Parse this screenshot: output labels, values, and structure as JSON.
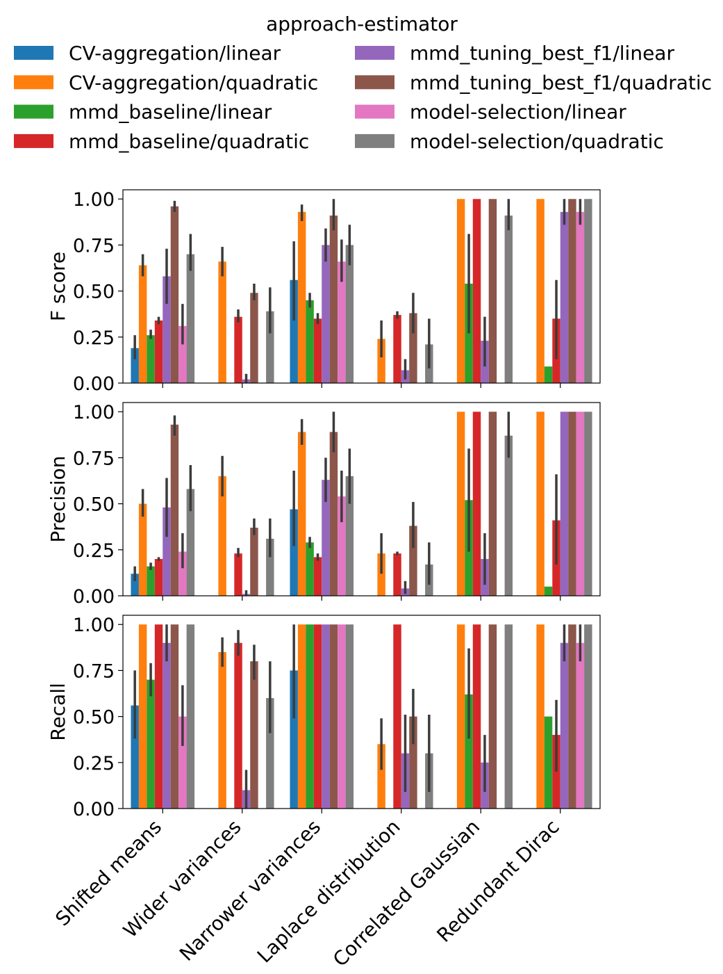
{
  "chart_data": {
    "type": "bar",
    "legend_title": "approach-estimator",
    "legend_position": "top",
    "categories": [
      "Shifted means",
      "Wider variances",
      "Narrower variances",
      "Laplace distribution",
      "Correlated Gaussian",
      "Redundant Dirac"
    ],
    "series_names": [
      "CV-aggregation/linear",
      "CV-aggregation/quadratic",
      "mmd_baseline/linear",
      "mmd_baseline/quadratic",
      "mmd_tuning_best_f1/linear",
      "mmd_tuning_best_f1/quadratic",
      "model-selection/linear",
      "model-selection/quadratic"
    ],
    "colors": [
      "#1f77b4",
      "#ff7f0e",
      "#2ca02c",
      "#d62728",
      "#9467bd",
      "#8c564b",
      "#e377c2",
      "#7f7f7f"
    ],
    "error_bar_color": "#3b3b3b",
    "ylim": [
      0,
      1.05
    ],
    "yticks": [
      "0.00",
      "0.25",
      "0.50",
      "0.75",
      "1.00"
    ],
    "panels": [
      {
        "ylabel": "F score",
        "series": [
          {
            "name": "CV-aggregation/linear",
            "values": [
              0.19,
              0,
              0.56,
              0,
              0,
              0
            ],
            "err": [
              [
                0.13,
                0.26
              ],
              null,
              [
                0.34,
                0.77
              ],
              null,
              null,
              null
            ]
          },
          {
            "name": "CV-aggregation/quadratic",
            "values": [
              0.64,
              0.66,
              0.93,
              0.24,
              1.0,
              1.0
            ],
            "err": [
              [
                0.58,
                0.7
              ],
              [
                0.58,
                0.74
              ],
              [
                0.88,
                0.97
              ],
              [
                0.14,
                0.34
              ],
              null,
              null
            ]
          },
          {
            "name": "mmd_baseline/linear",
            "values": [
              0.26,
              0,
              0.45,
              0,
              0.54,
              0.09
            ],
            "err": [
              [
                0.24,
                0.29
              ],
              null,
              [
                0.41,
                0.49
              ],
              null,
              [
                0.27,
                0.81
              ],
              null
            ]
          },
          {
            "name": "mmd_baseline/quadratic",
            "values": [
              0.34,
              0.36,
              0.35,
              0.37,
              1.0,
              0.35
            ],
            "err": [
              [
                0.32,
                0.36
              ],
              [
                0.33,
                0.4
              ],
              [
                0.32,
                0.38
              ],
              [
                0.35,
                0.39
              ],
              null,
              [
                0.13,
                0.56
              ]
            ]
          },
          {
            "name": "mmd_tuning_best_f1/linear",
            "values": [
              0.58,
              0.02,
              0.75,
              0.07,
              0.23,
              0.93
            ],
            "err": [
              [
                0.43,
                0.73
              ],
              [
                0.0,
                0.05
              ],
              [
                0.66,
                0.84
              ],
              [
                0.02,
                0.13
              ],
              [
                0.09,
                0.36
              ],
              [
                0.86,
                1.0
              ]
            ]
          },
          {
            "name": "mmd_tuning_best_f1/quadratic",
            "values": [
              0.96,
              0.49,
              0.91,
              0.38,
              1.0,
              1.0
            ],
            "err": [
              [
                0.93,
                0.99
              ],
              [
                0.45,
                0.54
              ],
              [
                0.83,
                1.0
              ],
              [
                0.27,
                0.49
              ],
              null,
              null
            ]
          },
          {
            "name": "model-selection/linear",
            "values": [
              0.31,
              0,
              0.66,
              0,
              0,
              0.93
            ],
            "err": [
              [
                0.21,
                0.43
              ],
              null,
              [
                0.55,
                0.78
              ],
              null,
              null,
              [
                0.86,
                1.0
              ]
            ]
          },
          {
            "name": "model-selection/quadratic",
            "values": [
              0.7,
              0.39,
              0.75,
              0.21,
              0.91,
              1.0
            ],
            "err": [
              [
                0.61,
                0.81
              ],
              [
                0.27,
                0.52
              ],
              [
                0.64,
                0.86
              ],
              [
                0.08,
                0.35
              ],
              [
                0.83,
                1.0
              ],
              null
            ]
          }
        ]
      },
      {
        "ylabel": "Precision",
        "series": [
          {
            "name": "CV-aggregation/linear",
            "values": [
              0.12,
              0,
              0.47,
              0,
              0,
              0
            ],
            "err": [
              [
                0.08,
                0.16
              ],
              null,
              [
                0.27,
                0.68
              ],
              null,
              null,
              null
            ]
          },
          {
            "name": "CV-aggregation/quadratic",
            "values": [
              0.5,
              0.65,
              0.89,
              0.23,
              1.0,
              1.0
            ],
            "err": [
              [
                0.43,
                0.58
              ],
              [
                0.54,
                0.76
              ],
              [
                0.82,
                0.96
              ],
              [
                0.12,
                0.34
              ],
              null,
              null
            ]
          },
          {
            "name": "mmd_baseline/linear",
            "values": [
              0.16,
              0,
              0.29,
              0,
              0.52,
              0.05
            ],
            "err": [
              [
                0.14,
                0.18
              ],
              null,
              [
                0.26,
                0.32
              ],
              null,
              [
                0.24,
                0.8
              ],
              null
            ]
          },
          {
            "name": "mmd_baseline/quadratic",
            "values": [
              0.2,
              0.23,
              0.21,
              0.23,
              1.0,
              0.41
            ],
            "err": [
              [
                0.19,
                0.21
              ],
              [
                0.21,
                0.26
              ],
              [
                0.19,
                0.23
              ],
              [
                0.22,
                0.24
              ],
              null,
              [
                0.17,
                0.66
              ]
            ]
          },
          {
            "name": "mmd_tuning_best_f1/linear",
            "values": [
              0.48,
              0.01,
              0.63,
              0.04,
              0.2,
              1.0
            ],
            "err": [
              [
                0.32,
                0.64
              ],
              [
                0.0,
                0.03
              ],
              [
                0.51,
                0.75
              ],
              [
                0.01,
                0.08
              ],
              [
                0.06,
                0.34
              ],
              null
            ]
          },
          {
            "name": "mmd_tuning_best_f1/quadratic",
            "values": [
              0.93,
              0.37,
              0.89,
              0.38,
              1.0,
              1.0
            ],
            "err": [
              [
                0.87,
                0.98
              ],
              [
                0.33,
                0.42
              ],
              [
                0.78,
                1.0
              ],
              [
                0.26,
                0.51
              ],
              null,
              null
            ]
          },
          {
            "name": "model-selection/linear",
            "values": [
              0.24,
              0,
              0.54,
              0,
              0,
              1.0
            ],
            "err": [
              [
                0.15,
                0.34
              ],
              null,
              [
                0.4,
                0.68
              ],
              null,
              null,
              null
            ]
          },
          {
            "name": "model-selection/quadratic",
            "values": [
              0.58,
              0.31,
              0.65,
              0.17,
              0.87,
              1.0
            ],
            "err": [
              [
                0.46,
                0.71
              ],
              [
                0.21,
                0.42
              ],
              [
                0.5,
                0.8
              ],
              [
                0.06,
                0.29
              ],
              [
                0.75,
                1.0
              ],
              null
            ]
          }
        ]
      },
      {
        "ylabel": "Recall",
        "series": [
          {
            "name": "CV-aggregation/linear",
            "values": [
              0.56,
              0,
              0.75,
              0,
              0,
              0
            ],
            "err": [
              [
                0.38,
                0.75
              ],
              null,
              [
                0.49,
                1.0
              ],
              null,
              null,
              null
            ]
          },
          {
            "name": "CV-aggregation/quadratic",
            "values": [
              1.0,
              0.85,
              1.0,
              0.35,
              1.0,
              1.0
            ],
            "err": [
              null,
              [
                0.77,
                0.93
              ],
              null,
              [
                0.21,
                0.49
              ],
              null,
              null
            ]
          },
          {
            "name": "mmd_baseline/linear",
            "values": [
              0.7,
              0,
              1.0,
              0,
              0.62,
              0.5
            ],
            "err": [
              [
                0.61,
                0.79
              ],
              null,
              null,
              null,
              [
                0.38,
                0.87
              ],
              null
            ]
          },
          {
            "name": "mmd_baseline/quadratic",
            "values": [
              1.0,
              0.9,
              1.0,
              1.0,
              1.0,
              0.4
            ],
            "err": [
              null,
              [
                0.83,
                0.97
              ],
              null,
              null,
              null,
              [
                0.2,
                0.59
              ]
            ]
          },
          {
            "name": "mmd_tuning_best_f1/linear",
            "values": [
              0.9,
              0.1,
              1.0,
              0.3,
              0.25,
              0.9
            ],
            "err": [
              [
                0.8,
                1.0
              ],
              [
                0.0,
                0.21
              ],
              null,
              [
                0.09,
                0.51
              ],
              [
                0.09,
                0.4
              ],
              [
                0.8,
                1.0
              ]
            ]
          },
          {
            "name": "mmd_tuning_best_f1/quadratic",
            "values": [
              1.0,
              0.8,
              1.0,
              0.5,
              1.0,
              1.0
            ],
            "err": [
              null,
              [
                0.7,
                0.89
              ],
              null,
              [
                0.35,
                0.65
              ],
              null,
              null
            ]
          },
          {
            "name": "model-selection/linear",
            "values": [
              0.5,
              0,
              1.0,
              0,
              0,
              0.9
            ],
            "err": [
              [
                0.34,
                0.67
              ],
              null,
              null,
              null,
              null,
              [
                0.8,
                1.0
              ]
            ]
          },
          {
            "name": "model-selection/quadratic",
            "values": [
              1.0,
              0.6,
              1.0,
              0.3,
              1.0,
              1.0
            ],
            "err": [
              null,
              [
                0.41,
                0.8
              ],
              null,
              [
                0.09,
                0.51
              ],
              null,
              null
            ]
          }
        ]
      }
    ]
  }
}
